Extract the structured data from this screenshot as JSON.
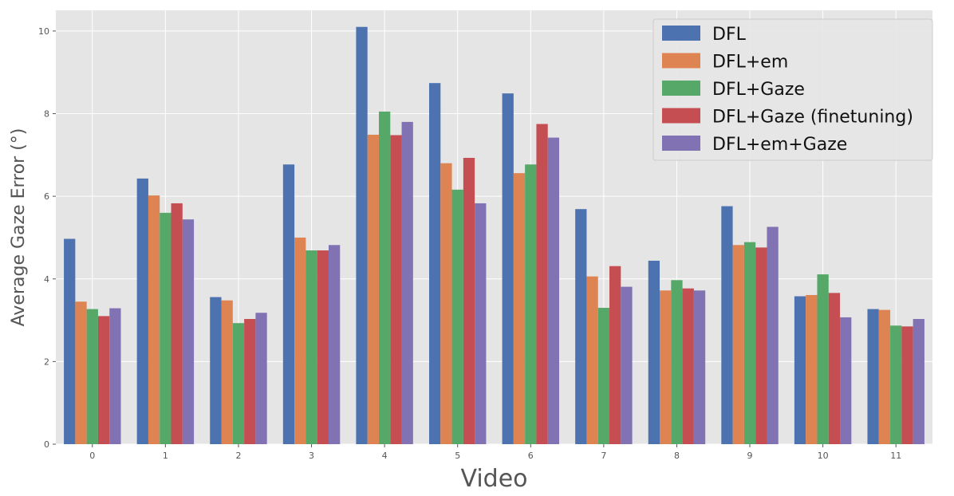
{
  "chart_data": {
    "type": "bar",
    "title": "",
    "xlabel": "Video",
    "ylabel": "Average Gaze Error (°)",
    "ylim": [
      0,
      10.5
    ],
    "yticks": [
      0,
      2,
      4,
      6,
      8,
      10
    ],
    "grid": true,
    "legend_position": "top-right",
    "categories": [
      "0",
      "1",
      "2",
      "3",
      "4",
      "5",
      "6",
      "7",
      "8",
      "9",
      "10",
      "11"
    ],
    "series": [
      {
        "name": "DFL",
        "color": "#4C72B0",
        "values": [
          4.97,
          6.43,
          3.56,
          6.77,
          10.1,
          8.74,
          8.49,
          5.69,
          4.44,
          5.76,
          3.58,
          3.27
        ]
      },
      {
        "name": "DFL+em",
        "color": "#DD8452",
        "values": [
          3.45,
          6.02,
          3.48,
          5.0,
          7.49,
          6.8,
          6.56,
          4.06,
          3.72,
          4.82,
          3.61,
          3.25
        ]
      },
      {
        "name": "DFL+Gaze",
        "color": "#55A868",
        "values": [
          3.27,
          5.6,
          2.93,
          4.69,
          8.05,
          6.16,
          6.77,
          3.3,
          3.97,
          4.89,
          4.11,
          2.87
        ]
      },
      {
        "name": "DFL+Gaze (finetuning)",
        "color": "#C44E52",
        "values": [
          3.1,
          5.83,
          3.03,
          4.69,
          7.48,
          6.93,
          7.75,
          4.31,
          3.77,
          4.76,
          3.66,
          2.85
        ]
      },
      {
        "name": "DFL+em+Gaze",
        "color": "#8172B3",
        "values": [
          3.29,
          5.44,
          3.18,
          4.82,
          7.8,
          5.83,
          7.42,
          3.81,
          3.72,
          5.26,
          3.07,
          3.03
        ]
      }
    ]
  }
}
